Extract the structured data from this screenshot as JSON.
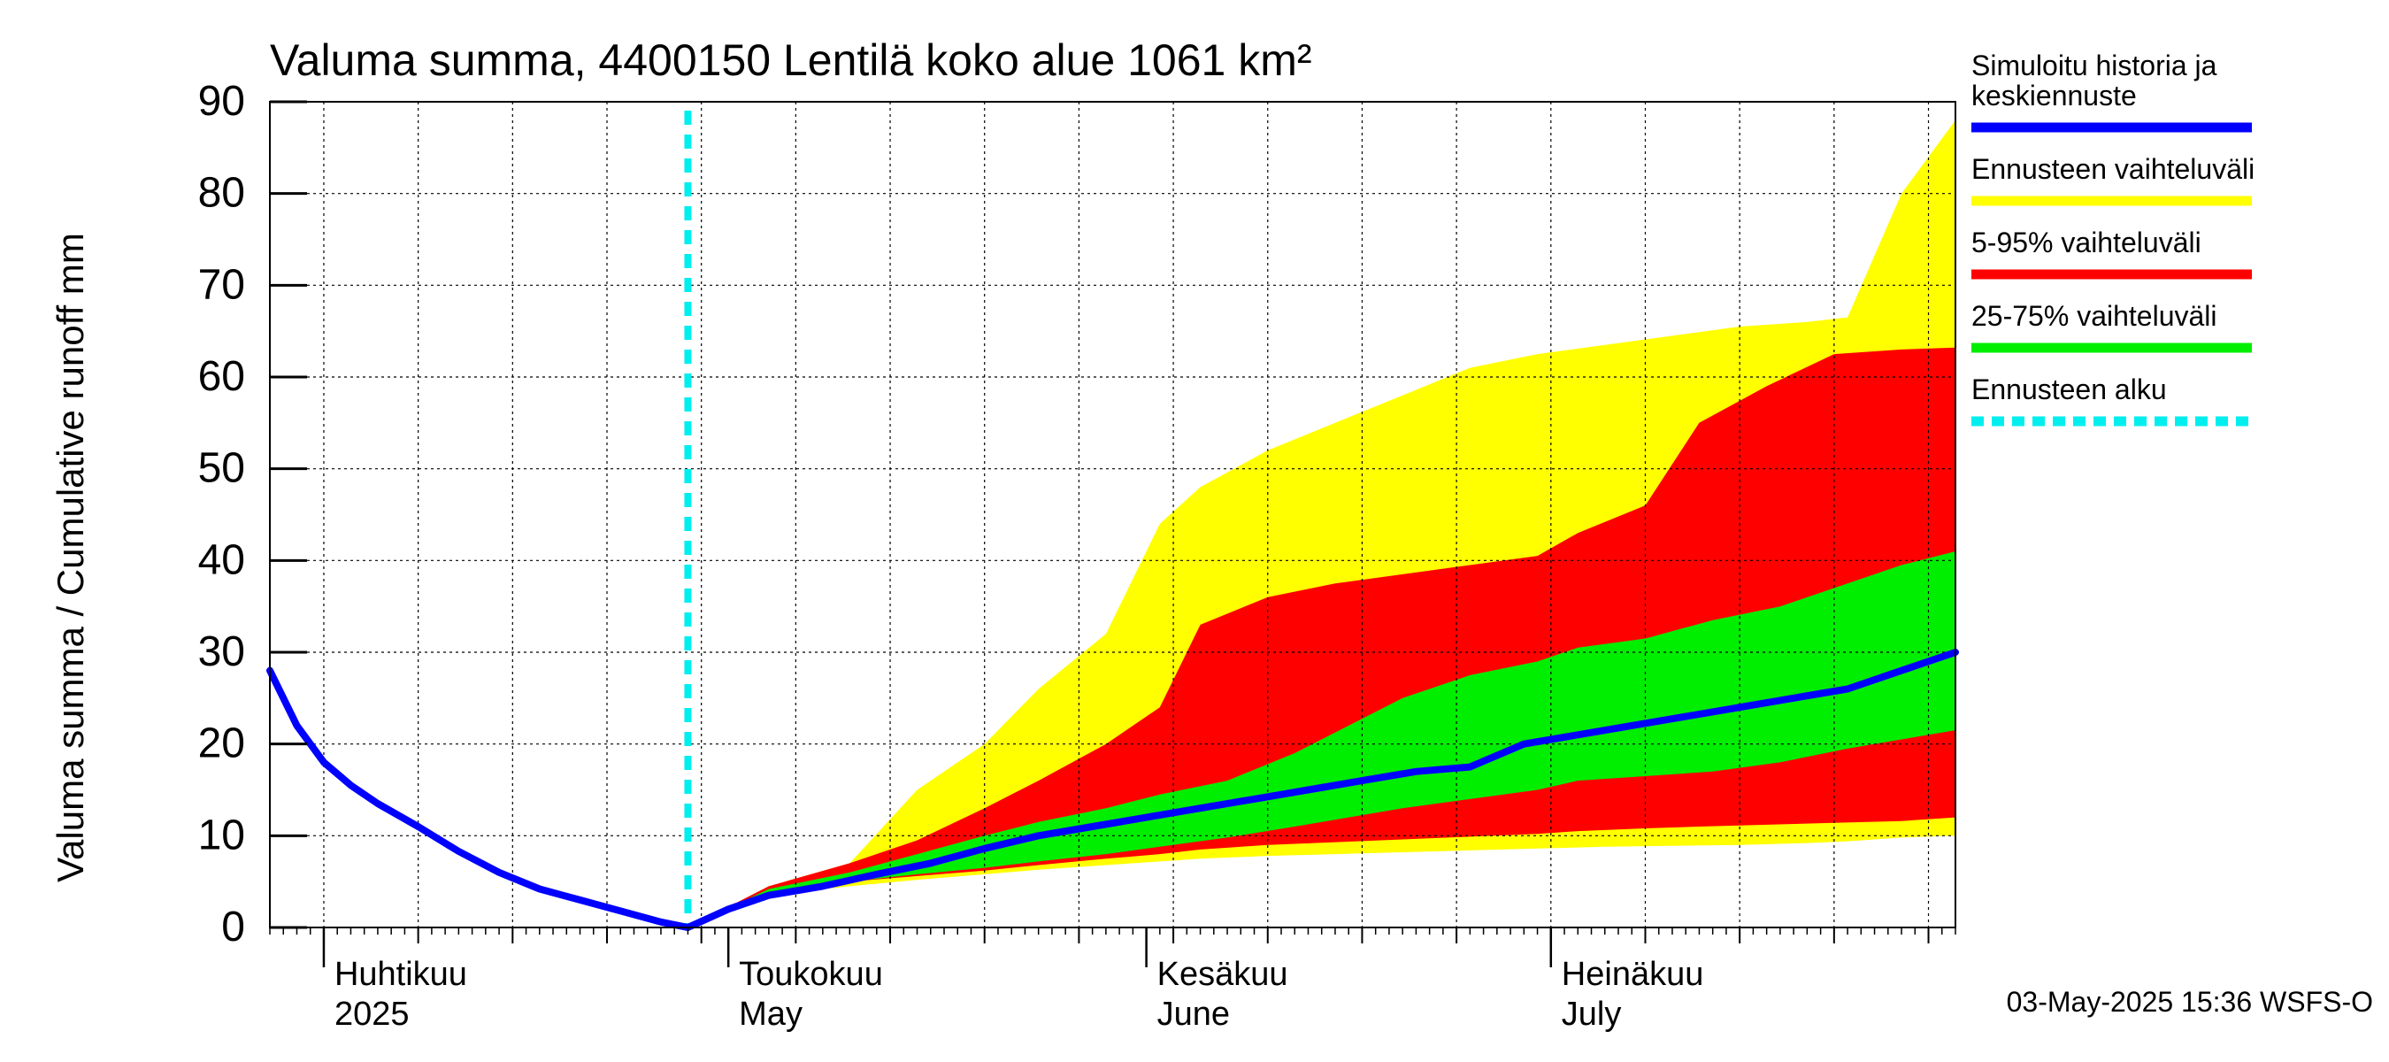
{
  "chart_data": {
    "type": "area",
    "title": "Valuma summa, 4400150 Lentilä koko alue 1061 km²",
    "ylabel": "Valuma summa / Cumulative runoff    mm",
    "ylim": [
      0,
      90
    ],
    "yticks": [
      0,
      10,
      20,
      30,
      40,
      50,
      60,
      70,
      80,
      90
    ],
    "xlim": [
      "2025-03-28",
      "2025-07-31"
    ],
    "month_labels": [
      {
        "line1": "Huhtikuu",
        "line2": "2025",
        "date": "2025-04-01"
      },
      {
        "line1": "Toukokuu",
        "line2": "May",
        "date": "2025-05-01"
      },
      {
        "line1": "Kesäkuu",
        "line2": "June",
        "date": "2025-06-01"
      },
      {
        "line1": "Heinäkuu",
        "line2": "July",
        "date": "2025-07-01"
      }
    ],
    "forecast_start": "2025-04-28",
    "timestamp": "03-May-2025 15:36 WSFS-O",
    "legend": [
      {
        "label": "Simuloitu historia ja keskiennuste",
        "color": "#0000ff",
        "style": "solid"
      },
      {
        "label": "Ennusteen vaihteluväli",
        "color": "#ffff00",
        "style": "solid"
      },
      {
        "label": "5-95% vaihteluväli",
        "color": "#ff0000",
        "style": "solid"
      },
      {
        "label": "25-75% vaihteluväli",
        "color": "#00ee00",
        "style": "solid"
      },
      {
        "label": "Ennusteen alku",
        "color": "#00eeee",
        "style": "dashed"
      }
    ],
    "colors": {
      "blue": "#0000ff",
      "yellow": "#ffff00",
      "red": "#ff0000",
      "green": "#00ee00",
      "cyan": "#00eeee"
    },
    "bands": {
      "yellow": {
        "x": [
          "2025-04-28",
          "2025-05-04",
          "2025-05-10",
          "2025-05-15",
          "2025-05-20",
          "2025-05-24",
          "2025-05-29",
          "2025-06-02",
          "2025-06-05",
          "2025-06-10",
          "2025-06-15",
          "2025-06-20",
          "2025-06-25",
          "2025-06-30",
          "2025-07-05",
          "2025-07-10",
          "2025-07-15",
          "2025-07-20",
          "2025-07-23",
          "2025-07-27",
          "2025-07-31"
        ],
        "upper": [
          0,
          4.5,
          7,
          15,
          20,
          26,
          32,
          44,
          48,
          52,
          55,
          58,
          61,
          62.5,
          63.5,
          64.5,
          65.5,
          66,
          66.5,
          80,
          88
        ],
        "lower": [
          0,
          3.5,
          4.5,
          5.2,
          5.8,
          6.3,
          6.8,
          7.2,
          7.5,
          7.8,
          8.0,
          8.2,
          8.4,
          8.6,
          8.8,
          8.9,
          9.0,
          9.2,
          9.4,
          9.8,
          10
        ]
      },
      "red": {
        "x": [
          "2025-04-28",
          "2025-05-04",
          "2025-05-10",
          "2025-05-15",
          "2025-05-20",
          "2025-05-24",
          "2025-05-29",
          "2025-06-02",
          "2025-06-05",
          "2025-06-10",
          "2025-06-15",
          "2025-06-20",
          "2025-06-25",
          "2025-06-30",
          "2025-07-03",
          "2025-07-08",
          "2025-07-12",
          "2025-07-17",
          "2025-07-22",
          "2025-07-27",
          "2025-07-31"
        ],
        "upper": [
          0,
          4.5,
          7,
          9.5,
          13,
          16,
          20,
          24,
          33,
          36,
          37.5,
          38.5,
          39.5,
          40.5,
          43,
          46,
          55,
          59,
          62.5,
          63,
          63.2
        ],
        "lower": [
          0,
          3.8,
          5,
          5.6,
          6.2,
          6.8,
          7.5,
          8.0,
          8.5,
          9.0,
          9.3,
          9.6,
          9.9,
          10.2,
          10.5,
          10.8,
          11.0,
          11.2,
          11.4,
          11.6,
          12
        ]
      },
      "green": {
        "x": [
          "2025-04-28",
          "2025-05-04",
          "2025-05-10",
          "2025-05-15",
          "2025-05-20",
          "2025-05-24",
          "2025-05-29",
          "2025-06-02",
          "2025-06-07",
          "2025-06-12",
          "2025-06-16",
          "2025-06-20",
          "2025-06-25",
          "2025-06-30",
          "2025-07-03",
          "2025-07-08",
          "2025-07-13",
          "2025-07-18",
          "2025-07-23",
          "2025-07-27",
          "2025-07-31"
        ],
        "upper": [
          0,
          4.2,
          6.0,
          8.0,
          10,
          11.5,
          13,
          14.5,
          16,
          19,
          22,
          25,
          27.5,
          29,
          30.5,
          31.5,
          33.5,
          35,
          37.5,
          39.5,
          41
        ],
        "lower": [
          0,
          3.9,
          5.0,
          5.8,
          6.5,
          7.2,
          8.0,
          8.8,
          9.8,
          11,
          12,
          13,
          14,
          15,
          16,
          16.5,
          17,
          18,
          19.5,
          20.5,
          21.5
        ]
      }
    },
    "series": [
      {
        "name": "Simuloitu historia ja keskiennuste",
        "x": [
          "2025-03-28",
          "2025-03-30",
          "2025-04-01",
          "2025-04-03",
          "2025-04-05",
          "2025-04-08",
          "2025-04-11",
          "2025-04-14",
          "2025-04-17",
          "2025-04-20",
          "2025-04-23",
          "2025-04-26",
          "2025-04-28",
          "2025-05-01",
          "2025-05-04",
          "2025-05-08",
          "2025-05-12",
          "2025-05-16",
          "2025-05-20",
          "2025-05-24",
          "2025-05-28",
          "2025-06-01",
          "2025-06-05",
          "2025-06-09",
          "2025-06-13",
          "2025-06-17",
          "2025-06-21",
          "2025-06-25",
          "2025-06-29",
          "2025-07-03",
          "2025-07-07",
          "2025-07-11",
          "2025-07-15",
          "2025-07-19",
          "2025-07-23",
          "2025-07-27",
          "2025-07-31"
        ],
        "values": [
          28,
          22,
          18,
          15.5,
          13.5,
          11,
          8.3,
          6,
          4.2,
          3,
          1.8,
          0.6,
          0,
          2,
          3.5,
          4.5,
          5.8,
          7,
          8.6,
          10,
          11,
          12,
          13,
          14,
          15,
          16,
          17,
          17.5,
          20,
          21,
          22,
          23,
          24,
          25,
          26,
          28,
          30
        ]
      }
    ]
  }
}
